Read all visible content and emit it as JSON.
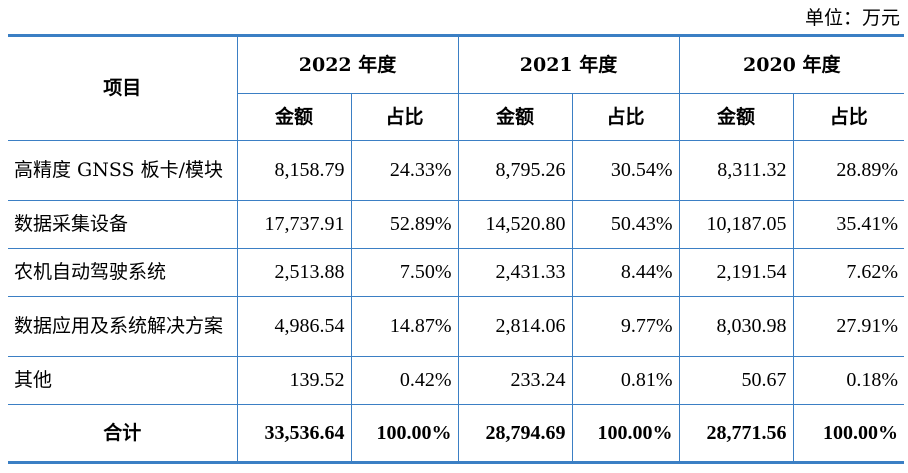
{
  "unit_label": "单位：万元",
  "table": {
    "item_header": "项目",
    "years": [
      "2022 年度",
      "2021 年度",
      "2020 年度"
    ],
    "amount_label": "金额",
    "ratio_label": "占比",
    "rows": [
      {
        "name": "高精度 GNSS 板卡/模块",
        "cells": [
          "8,158.79",
          "24.33%",
          "8,795.26",
          "30.54%",
          "8,311.32",
          "28.89%"
        ]
      },
      {
        "name": "数据采集设备",
        "cells": [
          "17,737.91",
          "52.89%",
          "14,520.80",
          "50.43%",
          "10,187.05",
          "35.41%"
        ]
      },
      {
        "name": "农机自动驾驶系统",
        "cells": [
          "2,513.88",
          "7.50%",
          "2,431.33",
          "8.44%",
          "2,191.54",
          "7.62%"
        ]
      },
      {
        "name": "数据应用及系统解决方案",
        "cells": [
          "4,986.54",
          "14.87%",
          "2,814.06",
          "9.77%",
          "8,030.98",
          "27.91%"
        ]
      },
      {
        "name": "其他",
        "cells": [
          "139.52",
          "0.42%",
          "233.24",
          "0.81%",
          "50.67",
          "0.18%"
        ]
      },
      {
        "name": "合计",
        "cells": [
          "33,536.64",
          "100.00%",
          "28,794.69",
          "100.00%",
          "28,771.56",
          "100.00%"
        ]
      }
    ]
  },
  "colors": {
    "border": "#3b7fc4"
  }
}
